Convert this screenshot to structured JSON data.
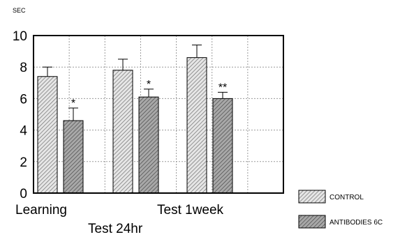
{
  "chart_data": {
    "type": "bar",
    "ylabel": "SEC",
    "ylim": [
      0,
      10
    ],
    "yticks": [
      0,
      2,
      4,
      6,
      8,
      10
    ],
    "grid": true,
    "legend_position": "bottom-right",
    "categories": [
      "Learning",
      "Test 24hr",
      "Test 1week"
    ],
    "series": [
      {
        "name": "CONTROL",
        "color": "#d0d0d0",
        "values": [
          7.4,
          7.8,
          8.6
        ],
        "errors": [
          0.6,
          0.7,
          0.8
        ],
        "significance": [
          "",
          "",
          ""
        ]
      },
      {
        "name": "ANTIBODIES 6C",
        "color": "#8a8a8a",
        "values": [
          4.6,
          6.1,
          6.0
        ],
        "errors": [
          0.8,
          0.5,
          0.4
        ],
        "significance": [
          "*",
          "*",
          "**"
        ]
      }
    ]
  }
}
